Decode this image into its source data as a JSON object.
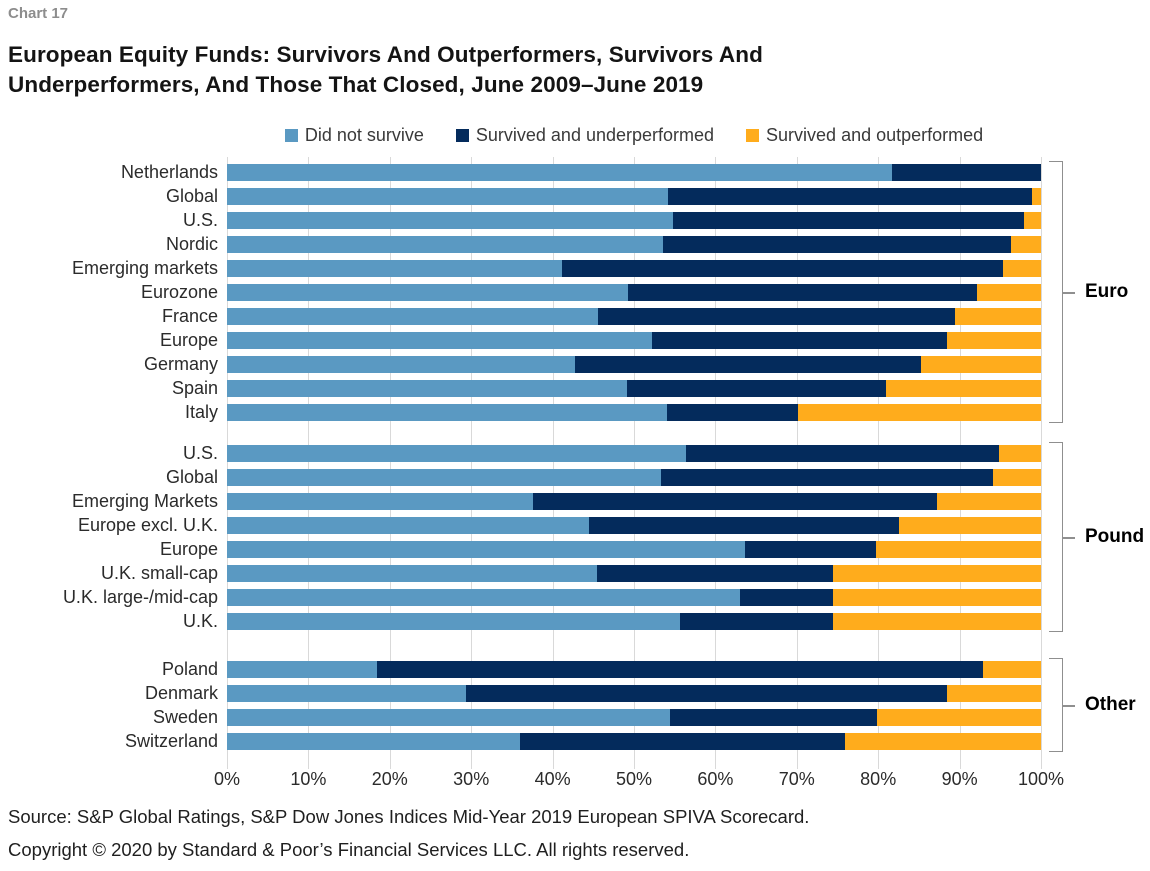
{
  "page": {
    "tag": "Chart 17",
    "title": "European Equity Funds: Survivors And Outperformers, Survivors And\nUnderperformers, And Those That Closed, June 2009–June 2019",
    "source": "Source: S&P Global Ratings, S&P Dow Jones Indices Mid-Year 2019 European SPIVA Scorecard.",
    "copyright": "Copyright © 2020 by Standard & Poor’s Financial Services LLC. All rights reserved."
  },
  "colors": {
    "did_not_survive": "#5A99C2",
    "survived_underperformed": "#042B5C",
    "survived_outperformed": "#FFAC1C",
    "gridline": "#D9D9D9",
    "bracket": "#8F8F8F"
  },
  "legend": {
    "items": [
      {
        "label": "Did not survive",
        "color": "#5A99C2"
      },
      {
        "label": "Survived and underperformed",
        "color": "#042B5C"
      },
      {
        "label": "Survived and outperformed",
        "color": "#FFAC1C"
      }
    ]
  },
  "chart_data": {
    "type": "bar",
    "orientation": "horizontal",
    "stacked": true,
    "value_unit": "percent",
    "xlim": [
      0,
      100
    ],
    "x_ticks": [
      "0%",
      "10%",
      "20%",
      "30%",
      "40%",
      "50%",
      "60%",
      "70%",
      "80%",
      "90%",
      "100%"
    ],
    "grid": true,
    "legend_position": "top",
    "series_names": [
      "Did not survive",
      "Survived and underperformed",
      "Survived and outperformed"
    ],
    "groups": [
      {
        "label": "Euro",
        "rows": [
          {
            "category": "Netherlands",
            "values": [
              81.7,
              18.3,
              0.0
            ]
          },
          {
            "category": "Global",
            "values": [
              54.2,
              44.7,
              1.1
            ]
          },
          {
            "category": "U.S.",
            "values": [
              54.8,
              43.1,
              2.1
            ]
          },
          {
            "category": "Nordic",
            "values": [
              53.6,
              42.7,
              3.7
            ]
          },
          {
            "category": "Emerging markets",
            "values": [
              41.1,
              54.2,
              4.7
            ]
          },
          {
            "category": "Eurozone",
            "values": [
              49.3,
              42.8,
              7.9
            ]
          },
          {
            "category": "France",
            "values": [
              45.6,
              43.8,
              10.6
            ]
          },
          {
            "category": "Europe",
            "values": [
              52.2,
              36.2,
              11.6
            ]
          },
          {
            "category": "Germany",
            "values": [
              42.8,
              42.5,
              14.7
            ]
          },
          {
            "category": "Spain",
            "values": [
              49.2,
              31.8,
              19.0
            ]
          },
          {
            "category": "Italy",
            "values": [
              54.1,
              16.0,
              29.9
            ]
          }
        ]
      },
      {
        "label": "Pound",
        "rows": [
          {
            "category": "U.S.",
            "values": [
              56.4,
              38.4,
              5.2
            ]
          },
          {
            "category": "Global",
            "values": [
              53.3,
              40.8,
              5.9
            ]
          },
          {
            "category": "Emerging Markets",
            "values": [
              37.6,
              49.6,
              12.8
            ]
          },
          {
            "category": "Europe excl. U.K.",
            "values": [
              44.5,
              38.1,
              17.4
            ]
          },
          {
            "category": "Europe",
            "values": [
              63.6,
              16.1,
              20.3
            ]
          },
          {
            "category": "U.K. small-cap",
            "values": [
              45.5,
              29.0,
              25.5
            ]
          },
          {
            "category": "U.K. large-/mid-cap",
            "values": [
              63.0,
              11.4,
              25.6
            ]
          },
          {
            "category": "U.K.",
            "values": [
              55.7,
              18.7,
              25.6
            ]
          }
        ]
      },
      {
        "label": "Other",
        "rows": [
          {
            "category": "Poland",
            "values": [
              18.4,
              74.5,
              7.1
            ]
          },
          {
            "category": "Denmark",
            "values": [
              29.4,
              59.0,
              11.6
            ]
          },
          {
            "category": "Sweden",
            "values": [
              54.4,
              25.5,
              20.1
            ]
          },
          {
            "category": "Switzerland",
            "values": [
              36.0,
              39.9,
              24.1
            ]
          }
        ]
      }
    ]
  }
}
